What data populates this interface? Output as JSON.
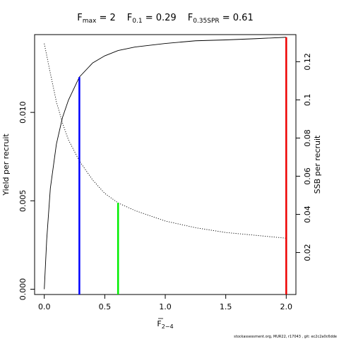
{
  "chart_data": {
    "type": "line",
    "title": {
      "fmax_label": "F",
      "fmax_sub": "max",
      "fmax_value": " = 2",
      "f01_label": "F",
      "f01_sub": "0.1",
      "f01_value": " = 0.29",
      "fspr_label": "F",
      "fspr_sub": "0.35SPR",
      "fspr_value": " = 0.61"
    },
    "xlabel": {
      "main": "F",
      "sub": "2−4"
    },
    "ylabel_left": "Yield per recruit",
    "ylabel_right": "SSB per recruit",
    "xlim": [
      -0.08,
      2.08
    ],
    "ylim_left": [
      -0.0003,
      0.0144
    ],
    "ylim_right": [
      -0.002,
      0.1342
    ],
    "x_ticks": [
      0,
      0.5,
      1,
      1.5,
      2
    ],
    "x_tick_labels": [
      "0.0",
      "0.5",
      "1.0",
      "1.5",
      "2.0"
    ],
    "y_left_ticks": [
      0,
      0.005,
      0.01
    ],
    "y_left_tick_labels": [
      "0.000",
      "0.005",
      "0.010"
    ],
    "y_right_ticks": [
      0.02,
      0.04,
      0.06,
      0.08,
      0.1,
      0.12
    ],
    "y_right_tick_labels": [
      "0.02",
      "0.04",
      "0.06",
      "0.08",
      "0.1",
      "0.12"
    ],
    "series": [
      {
        "axis": "left",
        "style": "solid",
        "x": [
          0,
          0.02,
          0.05,
          0.1,
          0.15,
          0.2,
          0.29,
          0.4,
          0.5,
          0.61,
          0.75,
          1.0,
          1.25,
          1.5,
          1.75,
          2.0
        ],
        "y": [
          0,
          0.0028,
          0.0057,
          0.0082,
          0.0097,
          0.0107,
          0.012,
          0.0128,
          0.0132,
          0.0135,
          0.0137,
          0.0139,
          0.01405,
          0.0141,
          0.01417,
          0.01425
        ]
      },
      {
        "axis": "right",
        "style": "dotted",
        "x": [
          0,
          0.05,
          0.1,
          0.15,
          0.2,
          0.29,
          0.4,
          0.5,
          0.61,
          0.75,
          1.0,
          1.25,
          1.5,
          1.75,
          2.0
        ],
        "y": [
          0.1295,
          0.114,
          0.099,
          0.088,
          0.079,
          0.068,
          0.058,
          0.051,
          0.046,
          0.042,
          0.0365,
          0.033,
          0.0305,
          0.029,
          0.0275
        ]
      }
    ],
    "vlines": [
      {
        "name": "F0.1",
        "x": 0.29,
        "y_top": 0.012,
        "axis": "left",
        "color": "#0000ff"
      },
      {
        "name": "F0.35SPR",
        "x": 0.61,
        "y_top": 0.046,
        "axis": "right",
        "color": "#00ee00"
      },
      {
        "name": "Fmax",
        "x": 2.0,
        "y_top": 0.01425,
        "axis": "left",
        "color": "#ee0000"
      }
    ]
  },
  "footer": "stockassessment.org, MUR22, r17043 , git: ec2c2a0c6dde"
}
